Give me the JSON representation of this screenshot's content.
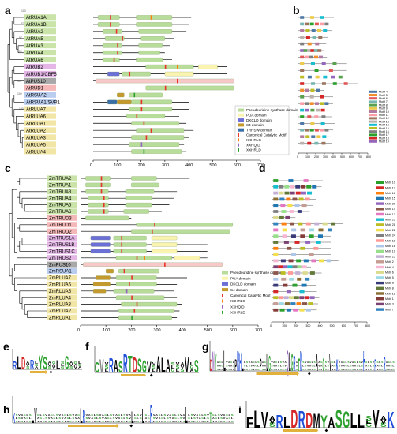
{
  "panels": {
    "a": "a",
    "b": "b",
    "c": "c",
    "d": "d",
    "e": "e",
    "f": "f",
    "g": "g",
    "h": "h",
    "i": "i"
  },
  "panel_a": {
    "genes": [
      "AtRUA1A",
      "AtRUA1B",
      "AtRUA2",
      "AtRUA5",
      "AtRUA3",
      "AtRUA4",
      "AtRUA6",
      "AtRUB2",
      "AtRUB1/CBF5",
      "AtPUS10",
      "AtRUD1",
      "AtRSUA2",
      "AtRSUA1/SVR1",
      "AtRLUA7",
      "AtRLUA6",
      "AtRLUA1",
      "AtRLUA2",
      "AtRLUA3",
      "AtRLUA5",
      "AtRLUA4"
    ],
    "label_colors": [
      "#c9e3a8",
      "#c9e3a8",
      "#c9e3a8",
      "#c9e3a8",
      "#c9e3a8",
      "#c9e3a8",
      "#c9e3a8",
      "#e3b6e6",
      "#e3b6e6",
      "#a8a8a8",
      "#f4b8b8",
      "#b9cdef",
      "#b9cdef",
      "#f1e6a6",
      "#f1e6a6",
      "#f1e6a6",
      "#f1e6a6",
      "#f1e6a6",
      "#f1e6a6",
      "#f1e6a6"
    ],
    "axis_ticks": [
      "0",
      "100",
      "200",
      "300",
      "400",
      "500",
      "600",
      "700"
    ],
    "legend": [
      "Pseudouridine synthase domain",
      "PUA domain",
      "DKCLD domain",
      "S4 domain",
      "TRHSW domain",
      "Canonical Catalytic Motif",
      "XXHRLG",
      "XXHQID",
      "XXHRLD"
    ],
    "bootstrap": [
      "100",
      "87",
      "97",
      "100",
      "99",
      "100",
      "100",
      "100"
    ]
  },
  "panel_b": {
    "axis_ticks": [
      "0",
      "100",
      "200",
      "300",
      "400",
      "500",
      "600",
      "700",
      "800"
    ],
    "motifs": [
      "Motif 4",
      "Motif 5",
      "Motif 6",
      "Motif 7",
      "Motif 8",
      "Motif 9",
      "Motif 10",
      "Motif 11",
      "Motif 12",
      "Motif 13",
      "Motif 14",
      "Motif 15",
      "Motif 16",
      "Motif 17",
      "Motif 18",
      "Motif 19"
    ]
  },
  "panel_c": {
    "genes": [
      "ZmTRUA2",
      "ZmTRUA1",
      "ZmTRUA3",
      "ZmTRUA4",
      "ZmTRUA5",
      "ZmTRUA6",
      "ZmTRUD3",
      "ZmTRUD1",
      "ZmTRUD2",
      "ZmTRUS1A",
      "ZmTRUS1B",
      "ZmTRUS1C",
      "ZmTRUS2",
      "ZmPUS10",
      "ZmRSUA1",
      "ZmRLUA7",
      "ZmRLUA6",
      "ZmRLUA5",
      "ZmRLUA4",
      "ZmRLUA3",
      "ZmRLUA2",
      "ZmRLUA1"
    ],
    "label_colors": [
      "#c9e3a8",
      "#c9e3a8",
      "#c9e3a8",
      "#c9e3a8",
      "#c9e3a8",
      "#c9e3a8",
      "#f4b8b8",
      "#f4b8b8",
      "#f4b8b8",
      "#e3b6e6",
      "#e3b6e6",
      "#e3b6e6",
      "#e3b6e6",
      "#a8a8a8",
      "#b9cdef",
      "#f1e6a6",
      "#f1e6a6",
      "#f1e6a6",
      "#f1e6a6",
      "#f1e6a6",
      "#f1e6a6",
      "#f1e6a6"
    ],
    "axis_ticks": [
      "0",
      "100",
      "200",
      "300",
      "400",
      "500",
      "600",
      "700"
    ],
    "legend": [
      "Pseudouridine synthase domain",
      "PUA domain",
      "DKCLD domain",
      "S4 domain",
      "Canonical Catalytic Motif",
      "XXHRLG",
      "XXHQID",
      "XXHRLD"
    ]
  },
  "panel_d": {
    "axis_ticks": [
      "0",
      "100",
      "200",
      "300",
      "400",
      "500",
      "600",
      "700",
      "800"
    ],
    "motifs": [
      "Motif 10",
      "Motif 13",
      "Motif 18",
      "Motif 15",
      "Motif 20",
      "Motif 14",
      "Motif 17",
      "Motif 23",
      "Motif 21",
      "Motif 22",
      "Motif 24",
      "Motif 11",
      "Motif 16",
      "Motif 19",
      "Motif 25",
      "Motif 2",
      "Motif 4",
      "Motif 6",
      "Motif 5",
      "Motif 9",
      "Motif 8",
      "Motif 12",
      "Motif 1",
      "Motif 3",
      "Motif 7"
    ]
  },
  "logos": {
    "e": "RLDxRxYSxxLxGxxx",
    "f": "CvxRASRTDSGVxALAxxxVxS",
    "g": "DNYxxxLxxxxPRHLxxxxxxxPxxLGxxxxxxxQLGRxTRxxxxxxAxxGxxVxxKxxxxxxxxxxxHxxxxRxxxRxxxx",
    "h": "KxxxxxxLVxxxxxxxxxxxxxxxxLRxxxxxxxxxxxxxxxxxLxxxLxxRxxxxxxxxxxxxLxxxxxxxxTxxxxxxxx",
    "i": "FLVxRLDRDMYASGLLxVxK"
  },
  "colors": {
    "pus_domain": "#b8dc9a",
    "pua_domain": "#fbf3b0",
    "dkcld_domain": "#6b6fd6",
    "s4_domain": "#c49a2e",
    "trhsw_domain": "#3b6fa8",
    "catalytic": "#e8322a",
    "xxhrlg": "#ff7f0e",
    "xxhqid": "#9467bd",
    "xxhrld": "#2ca02c",
    "pus10": "#f7c8c8"
  }
}
